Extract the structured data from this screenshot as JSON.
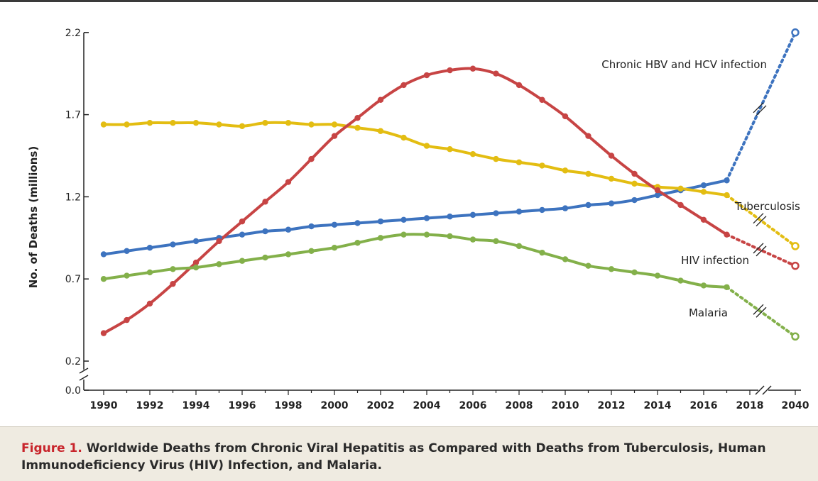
{
  "caption": {
    "label": "Figure 1.",
    "text": "Worldwide Deaths from Chronic Viral Hepatitis as Compared with Deaths from Tuberculosis, Human Immunodeficiency Virus (HIV) Infection, and Malaria."
  },
  "chart_data": {
    "type": "line",
    "title": "",
    "xlabel": "",
    "ylabel": "No. of Deaths (millions)",
    "y_ticks": [
      "0.0",
      "0.2",
      "0.7",
      "1.2",
      "1.7",
      "2.2"
    ],
    "x_ticks": [
      "1990",
      "1992",
      "1994",
      "1996",
      "1998",
      "2000",
      "2002",
      "2004",
      "2006",
      "2008",
      "2010",
      "2012",
      "2014",
      "2016",
      "2018",
      "2040"
    ],
    "y_axis_break": "between 0.0 and 0.2",
    "x_axis_break": "between 2018 and 2040",
    "grid": false,
    "x": [
      1990,
      1991,
      1992,
      1993,
      1994,
      1995,
      1996,
      1997,
      1998,
      1999,
      2000,
      2001,
      2002,
      2003,
      2004,
      2005,
      2006,
      2007,
      2008,
      2009,
      2010,
      2011,
      2012,
      2013,
      2014,
      2015,
      2016,
      2017
    ],
    "projection_year": 2040,
    "series": [
      {
        "name": "Chronic HBV and HCV infection",
        "color": "#3d73bf",
        "values": [
          0.85,
          0.87,
          0.89,
          0.91,
          0.93,
          0.95,
          0.97,
          0.99,
          1.0,
          1.02,
          1.03,
          1.04,
          1.05,
          1.06,
          1.07,
          1.08,
          1.09,
          1.1,
          1.11,
          1.12,
          1.13,
          1.15,
          1.16,
          1.18,
          1.21,
          1.24,
          1.27,
          1.3
        ],
        "projection_2040": 2.2
      },
      {
        "name": "Tuberculosis",
        "color": "#e3bd12",
        "values": [
          1.64,
          1.64,
          1.65,
          1.65,
          1.65,
          1.64,
          1.63,
          1.65,
          1.65,
          1.64,
          1.64,
          1.62,
          1.6,
          1.56,
          1.51,
          1.49,
          1.46,
          1.43,
          1.41,
          1.39,
          1.36,
          1.34,
          1.31,
          1.28,
          1.26,
          1.25,
          1.23,
          1.21
        ],
        "projection_2040": 0.9
      },
      {
        "name": "HIV infection",
        "color": "#c74444",
        "values": [
          0.37,
          0.45,
          0.55,
          0.67,
          0.8,
          0.93,
          1.05,
          1.17,
          1.29,
          1.43,
          1.57,
          1.68,
          1.79,
          1.88,
          1.94,
          1.97,
          1.98,
          1.95,
          1.88,
          1.79,
          1.69,
          1.57,
          1.45,
          1.34,
          1.24,
          1.15,
          1.06,
          0.97
        ],
        "projection_2040": 0.78
      },
      {
        "name": "Malaria",
        "color": "#83b04a",
        "values": [
          0.7,
          0.72,
          0.74,
          0.76,
          0.77,
          0.79,
          0.81,
          0.83,
          0.85,
          0.87,
          0.89,
          0.92,
          0.95,
          0.97,
          0.97,
          0.96,
          0.94,
          0.93,
          0.9,
          0.86,
          0.82,
          0.78,
          0.76,
          0.74,
          0.72,
          0.69,
          0.66,
          0.65
        ],
        "projection_2040": 0.35
      }
    ]
  }
}
